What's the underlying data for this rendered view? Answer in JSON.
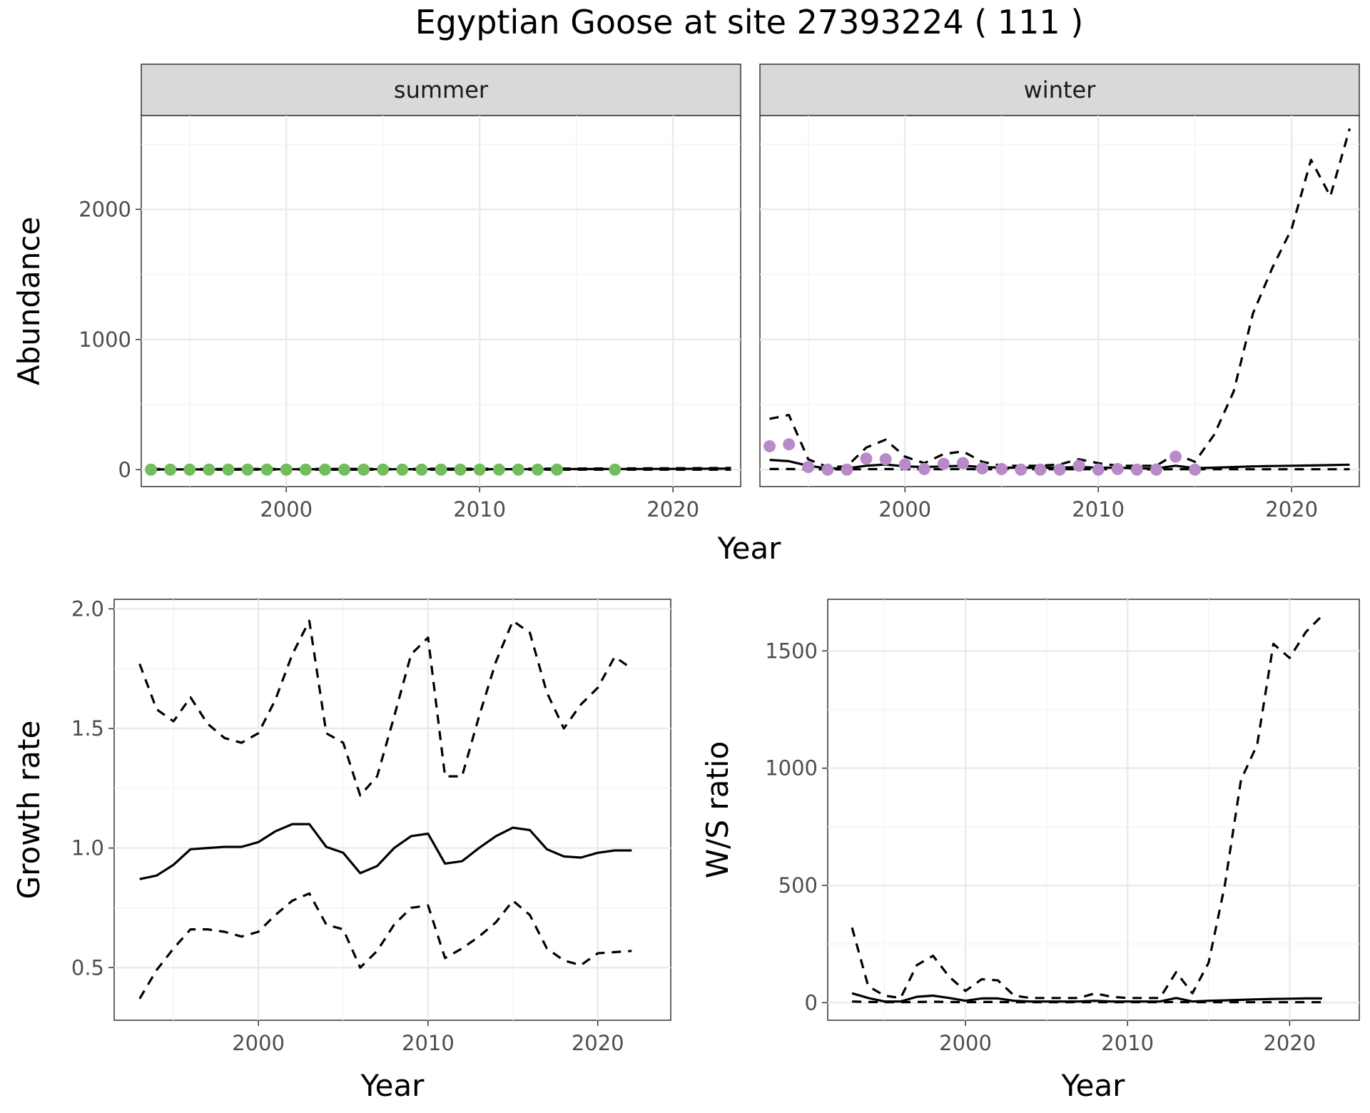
{
  "title": "Egyptian Goose at site 27393224 ( 111 )",
  "colors": {
    "summer_points": "#72bd5c",
    "winter_points": "#b88bc8",
    "line": "#000000",
    "strip_fill": "#d9d9d9",
    "grid_major": "#ebebeb",
    "grid_minor": "#f4f4f4",
    "axis_text": "#4d4d4d"
  },
  "chart_data": [
    {
      "id": "abundance",
      "type": "line",
      "ylabel": "Abundance",
      "xlabel": "Year",
      "xlim": [
        1992.5,
        2023.5
      ],
      "ylim": [
        -130,
        2720
      ],
      "xticks": [
        2000,
        2010,
        2020
      ],
      "yticks": [
        0,
        1000,
        2000
      ],
      "panels": [
        {
          "strip": "summer",
          "points": {
            "x": [
              1993,
              1994,
              1995,
              1996,
              1997,
              1998,
              1999,
              2000,
              2001,
              2002,
              2003,
              2004,
              2005,
              2006,
              2007,
              2008,
              2009,
              2010,
              2011,
              2012,
              2013,
              2014,
              2017
            ],
            "y": [
              0,
              0,
              0,
              0,
              0,
              0,
              0,
              0,
              0,
              0,
              0,
              0,
              0,
              0,
              0,
              0,
              0,
              0,
              0,
              0,
              0,
              0,
              0
            ]
          },
          "series": [
            {
              "name": "estimate",
              "style": "solid",
              "x": [
                1993,
                1996,
                2000,
                2004,
                2008,
                2012,
                2016,
                2020,
                2023
              ],
              "y": [
                2,
                2,
                3,
                3,
                4,
                4,
                5,
                6,
                8
              ]
            },
            {
              "name": "upper",
              "style": "dashed",
              "x": [
                1993,
                1996,
                2000,
                2004,
                2008,
                2012,
                2016,
                2020,
                2023
              ],
              "y": [
                5,
                5,
                6,
                6,
                7,
                7,
                9,
                11,
                13
              ]
            },
            {
              "name": "lower",
              "style": "dashed",
              "x": [
                1993,
                1996,
                2000,
                2004,
                2008,
                2012,
                2016,
                2020,
                2023
              ],
              "y": [
                0,
                0,
                0,
                0,
                0,
                0,
                0,
                0,
                0
              ]
            }
          ]
        },
        {
          "strip": "winter",
          "points": {
            "x": [
              1993,
              1994,
              1995,
              1996,
              1997,
              1998,
              1999,
              2000,
              2001,
              2002,
              2003,
              2004,
              2005,
              2006,
              2007,
              2008,
              2009,
              2010,
              2011,
              2012,
              2013,
              2014,
              2015
            ],
            "y": [
              180,
              195,
              20,
              0,
              0,
              85,
              80,
              40,
              5,
              45,
              50,
              10,
              5,
              0,
              0,
              0,
              30,
              0,
              5,
              0,
              0,
              100,
              0
            ]
          },
          "series": [
            {
              "name": "estimate",
              "style": "solid",
              "x": [
                1993,
                1994,
                1995,
                1996,
                1997,
                1998,
                1999,
                2000,
                2001,
                2002,
                2003,
                2004,
                2005,
                2006,
                2007,
                2008,
                2009,
                2010,
                2011,
                2012,
                2013,
                2014,
                2015,
                2016,
                2017,
                2018,
                2019,
                2020,
                2021,
                2022,
                2023
              ],
              "y": [
                75,
                65,
                30,
                10,
                10,
                30,
                40,
                25,
                20,
                25,
                30,
                20,
                15,
                15,
                15,
                15,
                20,
                15,
                15,
                10,
                10,
                30,
                12,
                15,
                20,
                25,
                28,
                30,
                32,
                35,
                38
              ]
            },
            {
              "name": "upper",
              "style": "dashed",
              "x": [
                1993,
                1994,
                1995,
                1996,
                1997,
                1998,
                1999,
                2000,
                2001,
                2002,
                2003,
                2004,
                2005,
                2006,
                2007,
                2008,
                2009,
                2010,
                2011,
                2012,
                2013,
                2014,
                2015,
                2016,
                2017,
                2018,
                2019,
                2020,
                2021,
                2022,
                2023
              ],
              "y": [
                390,
                420,
                80,
                20,
                25,
                170,
                230,
                100,
                50,
                120,
                140,
                60,
                30,
                30,
                30,
                40,
                80,
                50,
                30,
                30,
                30,
                120,
                60,
                270,
                600,
                1200,
                1550,
                1850,
                2380,
                2100,
                2620
              ]
            },
            {
              "name": "lower",
              "style": "dashed",
              "x": [
                1993,
                1994,
                1995,
                1996,
                1997,
                1998,
                1999,
                2000,
                2001,
                2002,
                2003,
                2004,
                2005,
                2006,
                2007,
                2008,
                2009,
                2010,
                2011,
                2012,
                2013,
                2014,
                2015,
                2016,
                2017,
                2018,
                2019,
                2020,
                2021,
                2022,
                2023
              ],
              "y": [
                5,
                5,
                3,
                2,
                2,
                4,
                5,
                4,
                3,
                4,
                5,
                3,
                3,
                3,
                3,
                3,
                4,
                3,
                3,
                2,
                2,
                4,
                3,
                3,
                3,
                3,
                3,
                3,
                3,
                3,
                3
              ]
            }
          ]
        }
      ]
    },
    {
      "id": "growth",
      "type": "line",
      "ylabel": "Growth rate",
      "xlabel": "Year",
      "xlim": [
        1991.5,
        2024.3
      ],
      "ylim": [
        0.28,
        2.04
      ],
      "xticks": [
        2000,
        2010,
        2020
      ],
      "yticks": [
        0.5,
        1.0,
        1.5,
        2.0
      ],
      "ytick_labels": [
        "0.5",
        "1.0",
        "1.5",
        "2.0"
      ],
      "series": [
        {
          "name": "estimate",
          "style": "solid",
          "x": [
            1993,
            1994,
            1995,
            1996,
            1997,
            1998,
            1999,
            2000,
            2001,
            2002,
            2003,
            2004,
            2005,
            2006,
            2007,
            2008,
            2009,
            2010,
            2011,
            2012,
            2013,
            2014,
            2015,
            2016,
            2017,
            2018,
            2019,
            2020,
            2021,
            2022
          ],
          "y": [
            0.87,
            0.885,
            0.93,
            0.995,
            1.0,
            1.005,
            1.005,
            1.025,
            1.07,
            1.1,
            1.1,
            1.005,
            0.98,
            0.895,
            0.925,
            1.0,
            1.05,
            1.06,
            0.935,
            0.945,
            1.0,
            1.05,
            1.085,
            1.075,
            0.995,
            0.965,
            0.96,
            0.98,
            0.99,
            0.99
          ]
        },
        {
          "name": "upper",
          "style": "dashed",
          "x": [
            1993,
            1994,
            1995,
            1996,
            1997,
            1998,
            1999,
            2000,
            2001,
            2002,
            2003,
            2004,
            2005,
            2006,
            2007,
            2008,
            2009,
            2010,
            2011,
            2012,
            2013,
            2014,
            2015,
            2016,
            2017,
            2018,
            2019,
            2020,
            2021,
            2022
          ],
          "y": [
            1.77,
            1.58,
            1.53,
            1.63,
            1.52,
            1.46,
            1.44,
            1.48,
            1.62,
            1.81,
            1.95,
            1.48,
            1.44,
            1.22,
            1.3,
            1.55,
            1.81,
            1.88,
            1.3,
            1.3,
            1.55,
            1.78,
            1.95,
            1.9,
            1.65,
            1.5,
            1.6,
            1.67,
            1.8,
            1.75
          ]
        },
        {
          "name": "lower",
          "style": "dashed",
          "x": [
            1993,
            1994,
            1995,
            1996,
            1997,
            1998,
            1999,
            2000,
            2001,
            2002,
            2003,
            2004,
            2005,
            2006,
            2007,
            2008,
            2009,
            2010,
            2011,
            2012,
            2013,
            2014,
            2015,
            2016,
            2017,
            2018,
            2019,
            2020,
            2021,
            2022
          ],
          "y": [
            0.37,
            0.49,
            0.58,
            0.66,
            0.66,
            0.65,
            0.63,
            0.65,
            0.72,
            0.78,
            0.81,
            0.68,
            0.66,
            0.5,
            0.57,
            0.68,
            0.75,
            0.76,
            0.54,
            0.58,
            0.63,
            0.69,
            0.78,
            0.72,
            0.58,
            0.53,
            0.51,
            0.56,
            0.565,
            0.57
          ]
        }
      ]
    },
    {
      "id": "ws_ratio",
      "type": "line",
      "ylabel": "W/S ratio",
      "xlabel": "Year",
      "xlim": [
        1991.5,
        2024.3
      ],
      "ylim": [
        -75,
        1720
      ],
      "xticks": [
        2000,
        2010,
        2020
      ],
      "yticks": [
        0,
        500,
        1000,
        1500
      ],
      "series": [
        {
          "name": "estimate",
          "style": "solid",
          "x": [
            1993,
            1994,
            1995,
            1996,
            1997,
            1998,
            1999,
            2000,
            2001,
            2002,
            2003,
            2004,
            2005,
            2006,
            2007,
            2008,
            2009,
            2010,
            2011,
            2012,
            2013,
            2014,
            2015,
            2016,
            2017,
            2018,
            2019,
            2020,
            2021,
            2022
          ],
          "y": [
            40,
            20,
            5,
            5,
            25,
            30,
            20,
            8,
            18,
            18,
            8,
            5,
            5,
            5,
            5,
            8,
            5,
            5,
            5,
            5,
            20,
            5,
            8,
            10,
            12,
            14,
            16,
            17,
            18,
            18
          ]
        },
        {
          "name": "upper",
          "style": "dashed",
          "x": [
            1993,
            1994,
            1995,
            1996,
            1997,
            1998,
            1999,
            2000,
            2001,
            2002,
            2003,
            2004,
            2005,
            2006,
            2007,
            2008,
            2009,
            2010,
            2011,
            2012,
            2013,
            2014,
            2015,
            2016,
            2017,
            2018,
            2019,
            2020,
            2021,
            2022
          ],
          "y": [
            320,
            70,
            30,
            20,
            160,
            200,
            110,
            50,
            100,
            95,
            30,
            20,
            20,
            20,
            20,
            40,
            25,
            20,
            20,
            20,
            130,
            40,
            170,
            500,
            950,
            1100,
            1530,
            1470,
            1580,
            1650
          ]
        },
        {
          "name": "lower",
          "style": "dashed",
          "x": [
            1993,
            1994,
            1995,
            1996,
            1997,
            1998,
            1999,
            2000,
            2001,
            2002,
            2003,
            2004,
            2005,
            2006,
            2007,
            2008,
            2009,
            2010,
            2011,
            2012,
            2013,
            2014,
            2015,
            2016,
            2017,
            2018,
            2019,
            2020,
            2021,
            2022
          ],
          "y": [
            5,
            3,
            2,
            2,
            3,
            4,
            3,
            2,
            3,
            3,
            2,
            2,
            2,
            2,
            2,
            2,
            2,
            2,
            2,
            2,
            3,
            2,
            2,
            2,
            2,
            2,
            2,
            2,
            2,
            2
          ]
        }
      ]
    }
  ]
}
